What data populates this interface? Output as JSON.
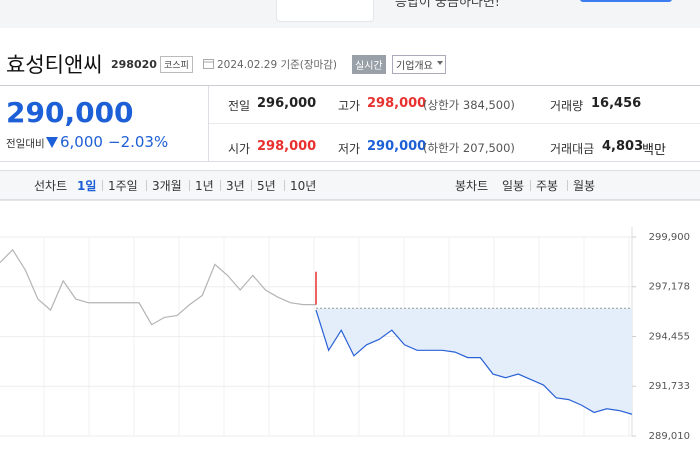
{
  "banner": {
    "text": "응답이 궁금하다면!"
  },
  "header": {
    "name": "효성티앤씨",
    "code": "298020",
    "market": "코스피",
    "date": "2024.02.29 기준(장마감)",
    "realtime": "실시간",
    "overview": "기업개요"
  },
  "price": {
    "current": "290,000",
    "change_label": "전일대비",
    "change": "6,000",
    "rate": "−2.03%"
  },
  "stats": [
    {
      "label": "전일",
      "value": "296,000"
    },
    {
      "label": "고가",
      "value": "298,000",
      "limit": "(상한가 384,500)"
    },
    {
      "label": "거래량",
      "value": "16,456"
    },
    {
      "label": "시가",
      "value": "298,000"
    },
    {
      "label": "저가",
      "value": "290,000",
      "limit": "(하한가 207,500)"
    },
    {
      "label": "거래대금",
      "value": "4,803",
      "unit": "백만"
    }
  ],
  "tabs": {
    "line_label": "선차트",
    "line": [
      "1일",
      "1주일",
      "3개월",
      "1년",
      "3년",
      "5년",
      "10년"
    ],
    "candle_label": "봉차트",
    "candle": [
      "일봉",
      "주봉",
      "월봉"
    ]
  },
  "chart_data": {
    "type": "line",
    "xlim": [
      0,
      50
    ],
    "ylim": [
      289010,
      299900
    ],
    "yticks": [
      {
        "value": 299900,
        "label": "299,900"
      },
      {
        "value": 297178,
        "label": "297,178"
      },
      {
        "value": 294455,
        "label": "294,455"
      },
      {
        "value": 291733,
        "label": "291,733"
      },
      {
        "value": 289010,
        "label": "289,010"
      }
    ],
    "grid": true,
    "reference": 296000,
    "spike": {
      "color": "#e8312f",
      "values": [
        296200,
        298000
      ]
    },
    "series": [
      {
        "color": "#b4b4b4",
        "values": [
          298500,
          299200,
          298100,
          296500,
          295900,
          297500,
          296500,
          296300,
          296300,
          296300,
          296300,
          296300,
          295100,
          295500,
          295600,
          296200,
          296700,
          298400,
          297800,
          297000,
          297800,
          297000,
          296600,
          296300,
          296200,
          296200,
          null,
          null,
          null,
          null,
          null,
          null,
          null,
          null,
          null,
          null,
          null,
          null,
          null,
          null,
          null,
          null,
          null,
          null,
          null,
          null,
          null,
          null,
          null,
          null,
          null
        ]
      },
      {
        "color": "#2a62d6",
        "values": [
          null,
          null,
          null,
          null,
          null,
          null,
          null,
          null,
          null,
          null,
          null,
          null,
          null,
          null,
          null,
          null,
          null,
          null,
          null,
          null,
          null,
          null,
          null,
          null,
          null,
          295900,
          293700,
          294800,
          293400,
          294000,
          294300,
          294800,
          294000,
          293700,
          293700,
          293700,
          293600,
          293300,
          293300,
          292400,
          292200,
          292400,
          292100,
          291800,
          291100,
          291000,
          290700,
          290300,
          290500,
          290400,
          290200
        ]
      }
    ]
  }
}
